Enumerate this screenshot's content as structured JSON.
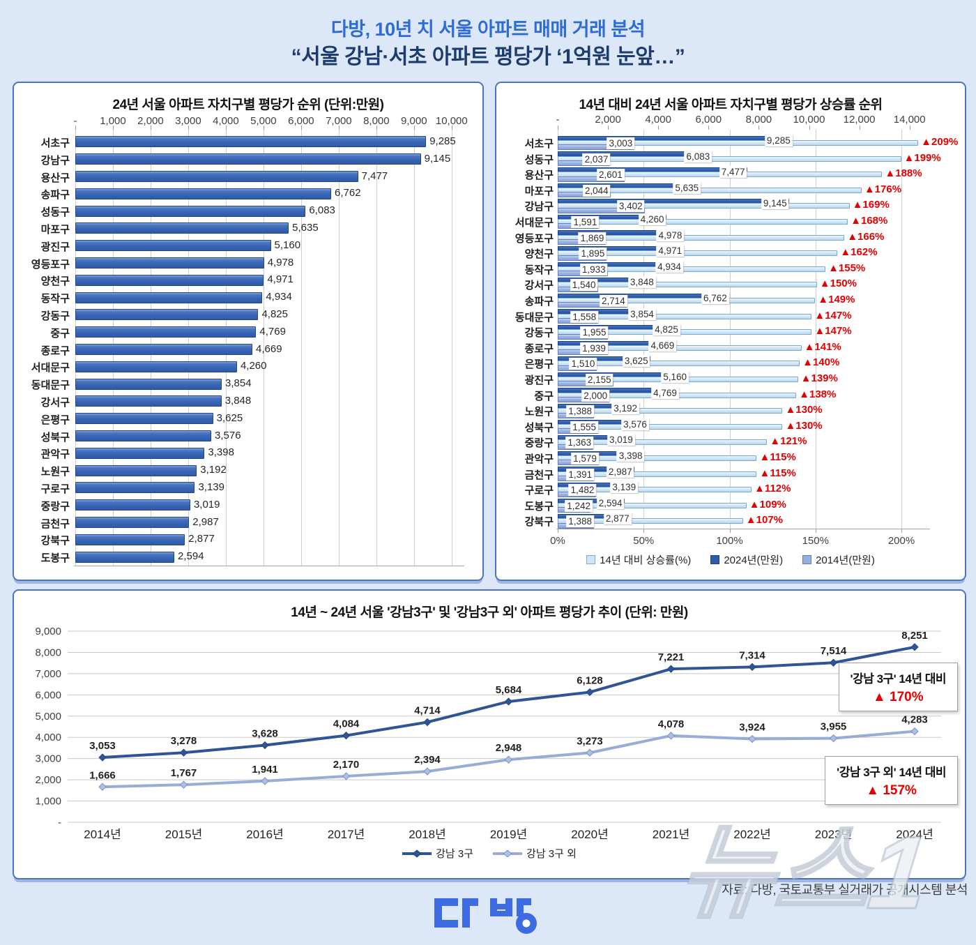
{
  "header": {
    "title": "다방, 10년 치 서울 아파트 매매 거래 분석",
    "subtitle": "“서울 강남·서초 아파트 평당가 ‘1억원 눈앞…”"
  },
  "footer": {
    "source": "자료: 다방, 국토교통부 실거래가 공개시스템 분석",
    "logo_text": "다방",
    "watermark": "뉴스1"
  },
  "colors": {
    "background": "#dce8f7",
    "header_blue": "#2e6bd5",
    "header_navy": "#1c3c6e",
    "panel_border": "#4a72c8",
    "bar_blue": "#3763b4",
    "bar_dark_2024": "#2d5cab",
    "bar_pale_pct": "#cfe4f5",
    "bar_periwinkle_2014": "#97aedd",
    "rise_red": "#e40000",
    "line_gangnam": "#2f5597",
    "line_other": "#98acd6"
  },
  "chart_data": [
    {
      "type": "bar",
      "orientation": "horizontal",
      "title": "24년 서울 아파트 자치구별 평당가 순위 (단위:만원)",
      "categories": [
        "서초구",
        "강남구",
        "용산구",
        "송파구",
        "성동구",
        "마포구",
        "광진구",
        "영등포구",
        "양천구",
        "동작구",
        "강동구",
        "중구",
        "종로구",
        "서대문구",
        "동대문구",
        "강서구",
        "은평구",
        "성북구",
        "관악구",
        "노원구",
        "구로구",
        "중랑구",
        "금천구",
        "강북구",
        "도봉구"
      ],
      "values": [
        9285,
        9145,
        7477,
        6762,
        6083,
        5635,
        5160,
        4978,
        4971,
        4934,
        4825,
        4769,
        4669,
        4260,
        3854,
        3848,
        3625,
        3576,
        3398,
        3192,
        3139,
        3019,
        2987,
        2877,
        2594
      ],
      "xlim": [
        0,
        10000
      ],
      "x_ticks": [
        "-",
        "1,000",
        "2,000",
        "3,000",
        "4,000",
        "5,000",
        "6,000",
        "7,000",
        "8,000",
        "9,000",
        "10,000"
      ],
      "grid": true
    },
    {
      "type": "bar",
      "orientation": "horizontal",
      "title": "14년 대비 24년 서울 아파트 자치구별 평당가 상승률 순위",
      "categories": [
        "서초구",
        "성동구",
        "용산구",
        "마포구",
        "강남구",
        "서대문구",
        "영등포구",
        "양천구",
        "동작구",
        "강서구",
        "송파구",
        "동대문구",
        "강동구",
        "종로구",
        "은평구",
        "광진구",
        "중구",
        "노원구",
        "성북구",
        "중랑구",
        "관악구",
        "금천구",
        "구로구",
        "도봉구",
        "강북구"
      ],
      "series": [
        {
          "name": "14년 대비 상승률(%)",
          "axis": "percent",
          "values": [
            209,
            199,
            188,
            176,
            169,
            168,
            166,
            162,
            155,
            150,
            149,
            147,
            147,
            141,
            140,
            139,
            138,
            130,
            130,
            121,
            115,
            115,
            112,
            109,
            107
          ]
        },
        {
          "name": "2024년(만원)",
          "axis": "value",
          "values": [
            9285,
            6083,
            7477,
            5635,
            9145,
            4260,
            4978,
            4971,
            4934,
            3848,
            6762,
            3854,
            4825,
            4669,
            3625,
            5160,
            4769,
            3192,
            3576,
            3019,
            3398,
            2987,
            3139,
            2594,
            2877
          ]
        },
        {
          "name": "2014년(만원)",
          "axis": "value",
          "values": [
            3003,
            2037,
            2601,
            2044,
            3402,
            1591,
            1869,
            1895,
            1933,
            1540,
            2714,
            1558,
            1955,
            1939,
            1510,
            2155,
            2000,
            1388,
            1555,
            1363,
            1579,
            1391,
            1482,
            1242,
            1388
          ]
        }
      ],
      "value_axis": {
        "lim": [
          0,
          14000
        ],
        "ticks": [
          "-",
          "2,000",
          "4,000",
          "6,000",
          "8,000",
          "10,000",
          "12,000",
          "14,000"
        ],
        "position": "top"
      },
      "percent_axis": {
        "lim": [
          0,
          200
        ],
        "ticks": [
          "0%",
          "50%",
          "100%",
          "150%",
          "200%"
        ],
        "position": "bottom"
      },
      "rise_prefix": "▲"
    },
    {
      "type": "line",
      "title": "14년 ~ 24년 서울 '강남3구' 및 '강남3구 외' 아파트 평당가 추이 (단위: 만원)",
      "categories": [
        "2014년",
        "2015년",
        "2016년",
        "2017년",
        "2018년",
        "2019년",
        "2020년",
        "2021년",
        "2022년",
        "2023년",
        "2024년"
      ],
      "series": [
        {
          "name": "강남 3구",
          "values": [
            3053,
            3278,
            3628,
            4084,
            4714,
            5684,
            6128,
            7221,
            7314,
            7514,
            8251
          ]
        },
        {
          "name": "강남 3구 외",
          "values": [
            1666,
            1767,
            1941,
            2170,
            2394,
            2948,
            3273,
            4078,
            3924,
            3955,
            4283
          ]
        }
      ],
      "ylim": [
        0,
        9000
      ],
      "y_ticks": [
        "-",
        "1,000",
        "2,000",
        "3,000",
        "4,000",
        "5,000",
        "6,000",
        "7,000",
        "8,000",
        "9,000"
      ],
      "annotations": [
        {
          "line1": "'강남 3구' 14년 대비",
          "line2": "▲ 170%"
        },
        {
          "line1": "'강남 3구 외' 14년 대비",
          "line2": "▲ 157%"
        }
      ],
      "grid": true,
      "legend_position": "bottom"
    }
  ]
}
